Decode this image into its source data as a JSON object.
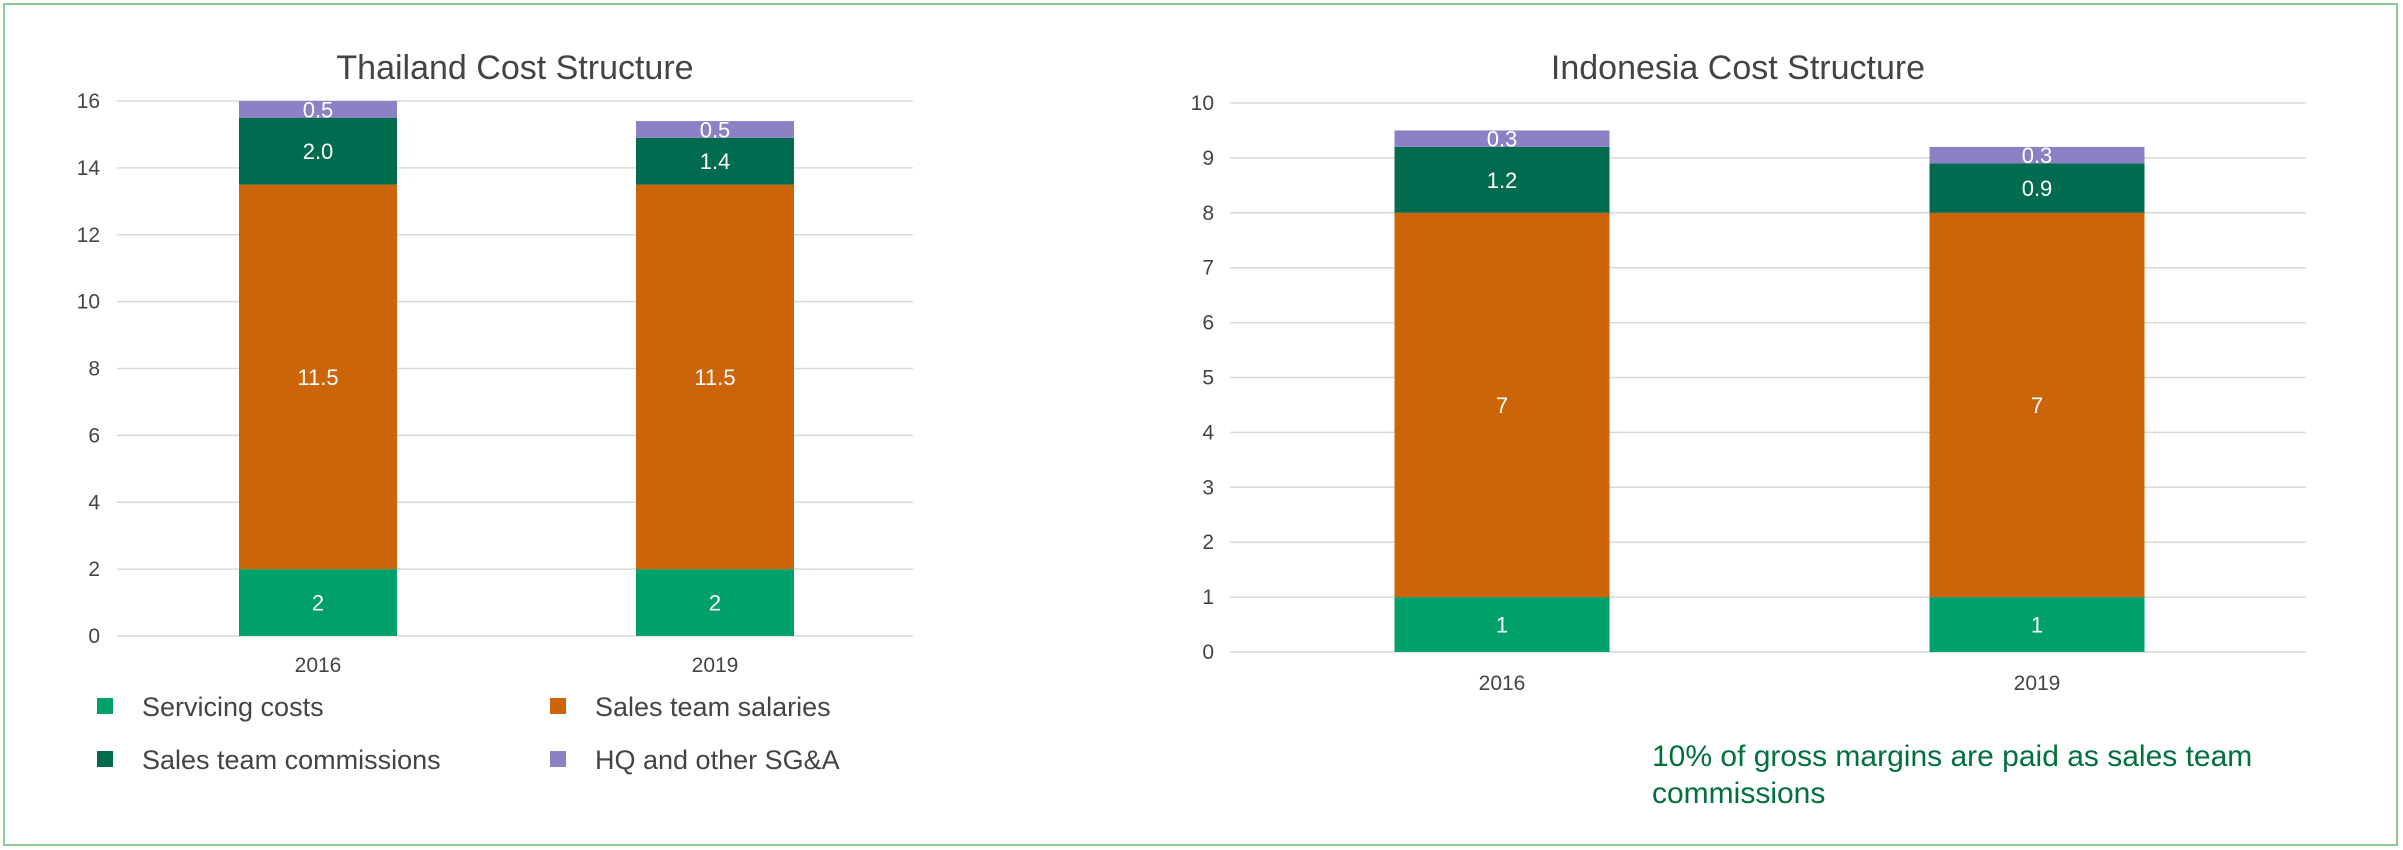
{
  "chart_data": [
    {
      "type": "bar",
      "stacked": true,
      "title": "Thailand Cost Structure",
      "categories": [
        "2016",
        "2019"
      ],
      "ylim": [
        0,
        16
      ],
      "yticks": [
        "0",
        "2",
        "4",
        "6",
        "8",
        "10",
        "12",
        "14",
        "16"
      ],
      "grid": true,
      "legend_position": "bottom",
      "series": [
        {
          "name": "Servicing costs",
          "color": "#00a06a",
          "values": [
            2,
            2
          ],
          "labels": [
            "2",
            "2"
          ]
        },
        {
          "name": "Sales team salaries",
          "color": "#cc640a",
          "values": [
            11.5,
            11.5
          ],
          "labels": [
            "11.5",
            "11.5"
          ]
        },
        {
          "name": "Sales team commissions",
          "color": "#006b4e",
          "values": [
            2.0,
            1.4
          ],
          "labels": [
            "2.0",
            "1.4"
          ]
        },
        {
          "name": "HQ and other SG&A",
          "color": "#8e80c4",
          "values": [
            0.5,
            0.5
          ],
          "labels": [
            "0.5",
            "0.5"
          ]
        }
      ]
    },
    {
      "type": "bar",
      "stacked": true,
      "title": "Indonesia Cost Structure",
      "categories": [
        "2016",
        "2019"
      ],
      "ylim": [
        0,
        10
      ],
      "yticks": [
        "0",
        "1",
        "2",
        "3",
        "4",
        "5",
        "6",
        "7",
        "8",
        "9",
        "10"
      ],
      "grid": true,
      "series": [
        {
          "color": "#00a06a",
          "values": [
            1,
            1
          ],
          "labels": [
            "1",
            "1"
          ]
        },
        {
          "color": "#cc640a",
          "values": [
            7,
            7
          ],
          "labels": [
            "7",
            "7"
          ]
        },
        {
          "color": "#006b4e",
          "values": [
            1.2,
            0.9
          ],
          "labels": [
            "1.2",
            "0.9"
          ]
        },
        {
          "color": "#8e80c4",
          "values": [
            0.3,
            0.3
          ],
          "labels": [
            "0.3",
            "0.3"
          ]
        }
      ]
    }
  ],
  "note": "10% of gross margins are paid as sales team commissions"
}
